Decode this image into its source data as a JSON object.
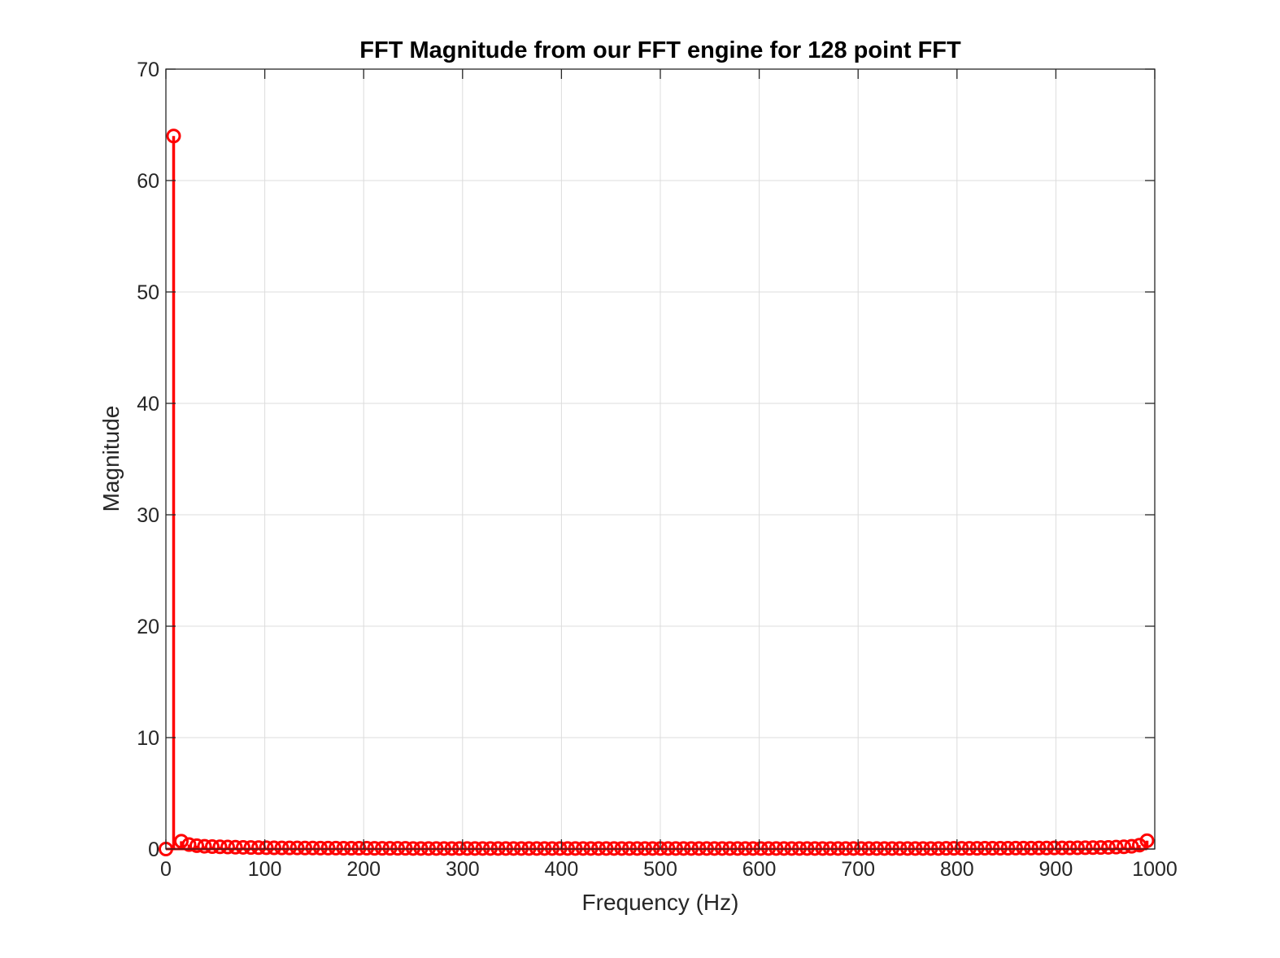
{
  "chart_data": {
    "type": "scatter",
    "style": "stem",
    "title": "FFT Magnitude from our FFT engine for 128 point FFT",
    "xlabel": "Frequency (Hz)",
    "ylabel": "Magnitude",
    "xlim": [
      0,
      1000
    ],
    "ylim": [
      0,
      70
    ],
    "xticks": [
      0,
      100,
      200,
      300,
      400,
      500,
      600,
      700,
      800,
      900,
      1000
    ],
    "yticks": [
      0,
      10,
      20,
      30,
      40,
      50,
      60,
      70
    ],
    "grid": true,
    "legend": "none",
    "color": "#ff0000",
    "marker": "circle-open",
    "series": [
      {
        "x": [
          0,
          7.8125,
          15.625,
          23.4375,
          31.25,
          39.0625,
          46.875,
          54.6875,
          62.5,
          70.3125,
          78.125,
          85.9375,
          93.75,
          101.5625,
          109.375,
          117.1875,
          125,
          132.8125,
          140.625,
          148.4375,
          156.25,
          164.0625,
          171.875,
          179.6875,
          187.5,
          195.3125,
          203.125,
          210.9375,
          218.75,
          226.5625,
          234.375,
          242.1875,
          250,
          257.8125,
          265.625,
          273.4375,
          281.25,
          289.0625,
          296.875,
          304.6875,
          312.5,
          320.3125,
          328.125,
          335.9375,
          343.75,
          351.5625,
          359.375,
          367.1875,
          375,
          382.8125,
          390.625,
          398.4375,
          406.25,
          414.0625,
          421.875,
          429.6875,
          437.5,
          445.3125,
          453.125,
          460.9375,
          468.75,
          476.5625,
          484.375,
          492.1875,
          500,
          507.8125,
          515.625,
          523.4375,
          531.25,
          539.0625,
          546.875,
          554.6875,
          562.5,
          570.3125,
          578.125,
          585.9375,
          593.75,
          601.5625,
          609.375,
          617.1875,
          625,
          632.8125,
          640.625,
          648.4375,
          656.25,
          664.0625,
          671.875,
          679.6875,
          687.5,
          695.3125,
          703.125,
          710.9375,
          718.75,
          726.5625,
          734.375,
          742.1875,
          750,
          757.8125,
          765.625,
          773.4375,
          781.25,
          789.0625,
          796.875,
          804.6875,
          812.5,
          820.3125,
          828.125,
          835.9375,
          843.75,
          851.5625,
          859.375,
          867.1875,
          875,
          882.8125,
          890.625,
          898.4375,
          906.25,
          914.0625,
          921.875,
          929.6875,
          937.5,
          945.3125,
          953.125,
          960.9375,
          968.75,
          976.5625,
          984.375,
          992.1875
        ],
        "y": [
          0,
          64,
          0.7,
          0.4,
          0.3,
          0.25,
          0.22,
          0.2,
          0.18,
          0.16,
          0.15,
          0.14,
          0.13,
          0.12,
          0.11,
          0.1,
          0.1,
          0.1,
          0.09,
          0.09,
          0.08,
          0.08,
          0.08,
          0.07,
          0.07,
          0.07,
          0.07,
          0.06,
          0.06,
          0.06,
          0.06,
          0.06,
          0.05,
          0.05,
          0.05,
          0.05,
          0.05,
          0.05,
          0.05,
          0.05,
          0.05,
          0.05,
          0.05,
          0.05,
          0.05,
          0.05,
          0.05,
          0.05,
          0.05,
          0.05,
          0.05,
          0.05,
          0.05,
          0.05,
          0.05,
          0.05,
          0.05,
          0.05,
          0.05,
          0.05,
          0.05,
          0.05,
          0.05,
          0.05,
          0.05,
          0.05,
          0.05,
          0.05,
          0.05,
          0.05,
          0.05,
          0.05,
          0.05,
          0.05,
          0.05,
          0.05,
          0.05,
          0.05,
          0.05,
          0.05,
          0.05,
          0.05,
          0.05,
          0.05,
          0.05,
          0.05,
          0.05,
          0.05,
          0.05,
          0.05,
          0.05,
          0.05,
          0.05,
          0.05,
          0.05,
          0.05,
          0.05,
          0.05,
          0.05,
          0.05,
          0.05,
          0.06,
          0.06,
          0.06,
          0.06,
          0.06,
          0.07,
          0.07,
          0.07,
          0.07,
          0.08,
          0.08,
          0.08,
          0.09,
          0.09,
          0.1,
          0.1,
          0.1,
          0.11,
          0.12,
          0.13,
          0.14,
          0.15,
          0.17,
          0.2,
          0.25,
          0.35,
          0.75
        ]
      }
    ]
  }
}
